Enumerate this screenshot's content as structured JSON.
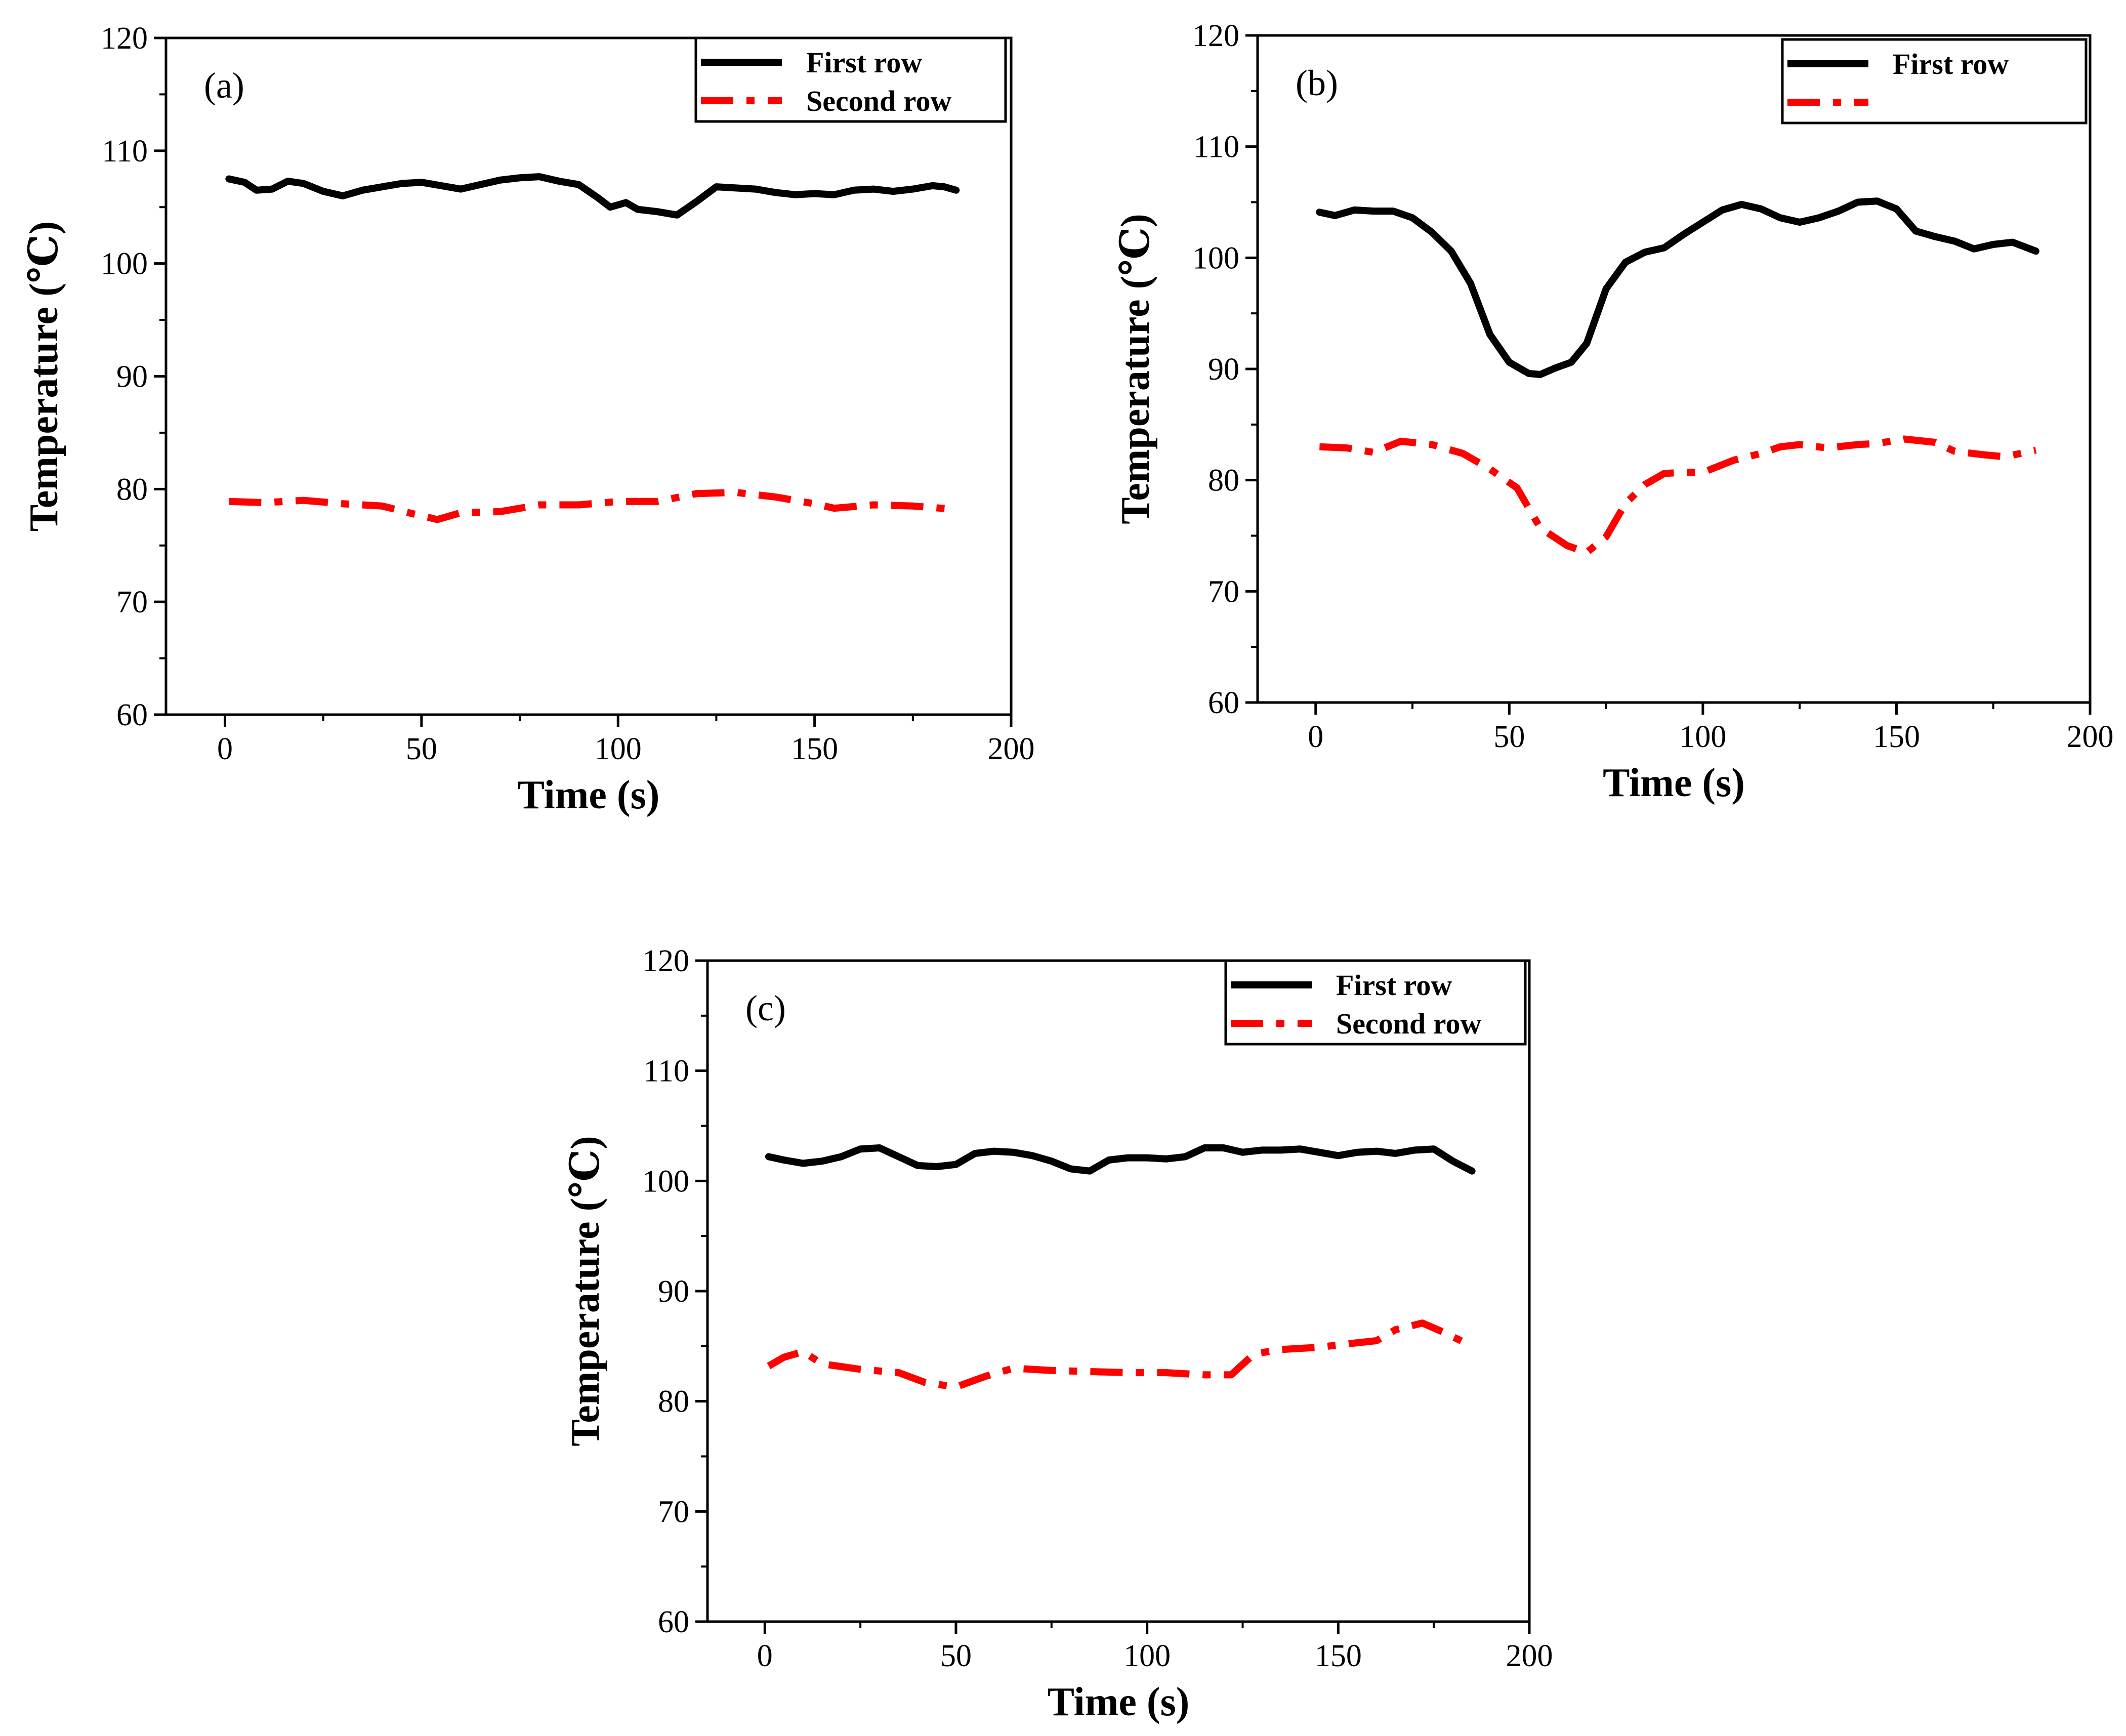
{
  "chart_data": [
    {
      "type": "line",
      "panel_label": "(a)",
      "xlabel": "Time (s)",
      "ylabel": "Temperature (℃)",
      "xlim": [
        -15,
        200
      ],
      "ylim": [
        60,
        120
      ],
      "x_ticks": [
        0,
        50,
        100,
        150,
        200
      ],
      "y_ticks": [
        60,
        70,
        80,
        90,
        100,
        110,
        120
      ],
      "grid": false,
      "legend_position": "top-right",
      "series": [
        {
          "name": "First row",
          "color": "#000000",
          "style": "solid",
          "x": [
            1,
            5,
            8,
            12,
            16,
            20,
            25,
            30,
            35,
            40,
            45,
            50,
            55,
            60,
            65,
            70,
            75,
            80,
            85,
            90,
            95,
            98,
            102,
            105,
            110,
            115,
            120,
            125,
            130,
            135,
            140,
            145,
            150,
            155,
            160,
            165,
            170,
            175,
            180,
            183,
            186
          ],
          "y": [
            107.5,
            107.2,
            106.5,
            106.6,
            107.3,
            107.1,
            106.4,
            106.0,
            106.5,
            106.8,
            107.1,
            107.2,
            106.9,
            106.6,
            107.0,
            107.4,
            107.6,
            107.7,
            107.3,
            107.0,
            105.8,
            105.0,
            105.4,
            104.8,
            104.6,
            104.3,
            105.5,
            106.8,
            106.7,
            106.6,
            106.3,
            106.1,
            106.2,
            106.1,
            106.5,
            106.6,
            106.4,
            106.6,
            106.9,
            106.8,
            106.5
          ]
        },
        {
          "name": "Second row",
          "color": "#ff0000",
          "style": "dashdot",
          "x": [
            1,
            10,
            20,
            30,
            40,
            48,
            54,
            60,
            70,
            80,
            90,
            100,
            110,
            120,
            130,
            140,
            150,
            155,
            165,
            175,
            186
          ],
          "y": [
            78.9,
            78.8,
            79.0,
            78.7,
            78.5,
            77.8,
            77.3,
            77.9,
            78.0,
            78.6,
            78.6,
            78.9,
            78.9,
            79.6,
            79.7,
            79.3,
            78.7,
            78.3,
            78.6,
            78.5,
            78.2
          ]
        }
      ]
    },
    {
      "type": "line",
      "panel_label": "(b)",
      "xlabel": "Time (s)",
      "ylabel": "Temperature (℃)",
      "xlim": [
        -15,
        200
      ],
      "ylim": [
        60,
        120
      ],
      "x_ticks": [
        0,
        50,
        100,
        150,
        200
      ],
      "y_ticks": [
        60,
        70,
        80,
        90,
        100,
        110,
        120
      ],
      "grid": false,
      "legend_position": "top-right",
      "series": [
        {
          "name": "First row",
          "color": "#000000",
          "style": "solid",
          "x": [
            1,
            5,
            10,
            15,
            20,
            25,
            30,
            35,
            40,
            45,
            50,
            55,
            58,
            62,
            66,
            70,
            75,
            80,
            85,
            90,
            95,
            100,
            105,
            110,
            115,
            120,
            125,
            130,
            135,
            140,
            145,
            150,
            155,
            160,
            165,
            170,
            175,
            180,
            186
          ],
          "y": [
            104.1,
            103.8,
            104.3,
            104.2,
            104.2,
            103.6,
            102.3,
            100.6,
            97.7,
            93.1,
            90.6,
            89.6,
            89.5,
            90.1,
            90.6,
            92.3,
            97.2,
            99.6,
            100.5,
            100.9,
            102.1,
            103.2,
            104.3,
            104.8,
            104.4,
            103.6,
            103.2,
            103.6,
            104.2,
            105.0,
            105.1,
            104.4,
            102.4,
            101.9,
            101.5,
            100.8,
            101.2,
            101.4,
            100.6
          ]
        },
        {
          "color": "#ff0000",
          "style": "dashdot",
          "x": [
            1,
            8,
            15,
            22,
            30,
            38,
            45,
            52,
            58,
            65,
            70,
            75,
            80,
            85,
            90,
            95,
            100,
            108,
            115,
            120,
            125,
            132,
            140,
            145,
            152,
            160,
            165,
            172,
            178,
            186
          ],
          "y": [
            83.0,
            82.9,
            82.5,
            83.5,
            83.2,
            82.4,
            81.0,
            79.3,
            75.7,
            74.1,
            73.5,
            74.9,
            77.9,
            79.6,
            80.6,
            80.7,
            80.7,
            81.8,
            82.4,
            83.0,
            83.2,
            82.9,
            83.2,
            83.3,
            83.7,
            83.4,
            82.6,
            82.3,
            82.1,
            82.7
          ]
        }
      ]
    },
    {
      "type": "line",
      "panel_label": "(c)",
      "xlabel": "Time (s)",
      "ylabel": "Temperature (℃)",
      "xlim": [
        -15,
        200
      ],
      "ylim": [
        60,
        120
      ],
      "x_ticks": [
        0,
        50,
        100,
        150,
        200
      ],
      "y_ticks": [
        60,
        70,
        80,
        90,
        100,
        110,
        120
      ],
      "grid": false,
      "legend_position": "top-right",
      "series": [
        {
          "name": "First row",
          "color": "#000000",
          "style": "solid",
          "x": [
            1,
            5,
            10,
            15,
            20,
            25,
            30,
            35,
            40,
            45,
            50,
            55,
            60,
            65,
            70,
            75,
            80,
            85,
            90,
            95,
            100,
            105,
            110,
            115,
            120,
            125,
            130,
            135,
            140,
            145,
            150,
            155,
            160,
            165,
            170,
            175,
            180,
            185
          ],
          "y": [
            102.2,
            101.9,
            101.6,
            101.8,
            102.2,
            102.9,
            103.0,
            102.2,
            101.4,
            101.3,
            101.5,
            102.5,
            102.7,
            102.6,
            102.3,
            101.8,
            101.1,
            100.9,
            101.9,
            102.1,
            102.1,
            102.0,
            102.2,
            103.0,
            103.0,
            102.6,
            102.8,
            102.8,
            102.9,
            102.6,
            102.3,
            102.6,
            102.7,
            102.5,
            102.8,
            102.9,
            101.8,
            100.9
          ]
        },
        {
          "name": "Second row",
          "color": "#ff0000",
          "style": "dashdot",
          "x": [
            1,
            5,
            10,
            15,
            25,
            35,
            42,
            50,
            58,
            65,
            75,
            85,
            95,
            105,
            115,
            122,
            128,
            135,
            145,
            152,
            160,
            165,
            172,
            178,
            185
          ],
          "y": [
            83.2,
            84.0,
            84.5,
            83.4,
            82.9,
            82.6,
            81.7,
            81.3,
            82.3,
            83.0,
            82.8,
            82.7,
            82.6,
            82.6,
            82.4,
            82.4,
            84.3,
            84.7,
            84.9,
            85.2,
            85.5,
            86.5,
            87.1,
            86.2,
            85.0
          ]
        }
      ]
    }
  ]
}
